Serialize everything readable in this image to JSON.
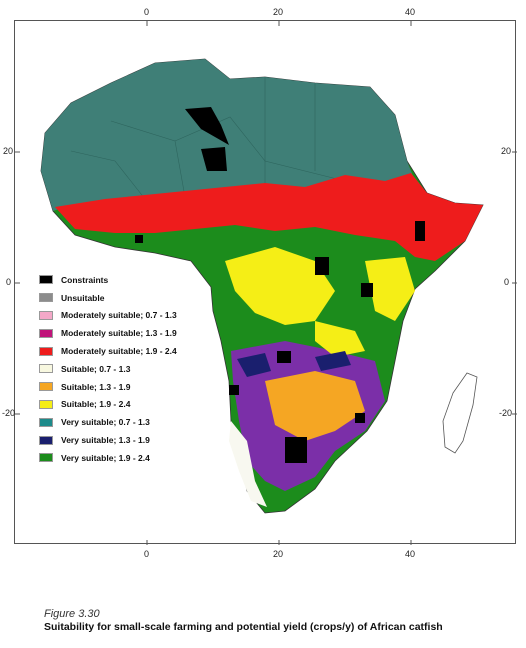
{
  "figure": {
    "number": "Figure 3.30",
    "title": "Suitability for small-scale farming and potential yield (crops/y) of African catfish"
  },
  "axes": {
    "top_labels": [
      "0",
      "20",
      "40"
    ],
    "bottom_labels": [
      "0",
      "20",
      "40"
    ],
    "left_labels": [
      "20",
      "0",
      "-20"
    ],
    "right_labels": [
      "20",
      "0",
      "-20"
    ]
  },
  "legend": [
    {
      "label": "Constraints",
      "color": "#000000"
    },
    {
      "label": "Unsuitable",
      "color": "#8c8c8c"
    },
    {
      "label": "Moderately suitable; 0.7 - 1.3",
      "color": "#f4a8c8"
    },
    {
      "label": "Moderately suitable; 1.3 - 1.9",
      "color": "#c0137a"
    },
    {
      "label": "Moderately suitable; 1.9 - 2.4",
      "color": "#ee1c1c"
    },
    {
      "label": "Suitable; 0.7 - 1.3",
      "color": "#f8f8e0"
    },
    {
      "label": "Suitable; 1.3 - 1.9",
      "color": "#f5a623"
    },
    {
      "label": "Suitable; 1.9 - 2.4",
      "color": "#f5ee16"
    },
    {
      "label": "Very suitable; 0.7 - 1.3",
      "color": "#1d8a8a"
    },
    {
      "label": "Very suitable; 1.3 - 1.9",
      "color": "#1a1f6e"
    },
    {
      "label": "Very suitable; 1.9 - 2.4",
      "color": "#1c8c1c"
    }
  ],
  "map_colors": {
    "sahara": "#3f7f77",
    "sahel_red": "#ee1c1c",
    "green": "#1c8c1c",
    "yellow": "#f5ee16",
    "orange": "#f5a623",
    "purple": "#7b2fa8",
    "magenta": "#c0137a",
    "blue": "#1a1f6e",
    "black": "#000000",
    "white_zone": "#f8f8f0"
  }
}
